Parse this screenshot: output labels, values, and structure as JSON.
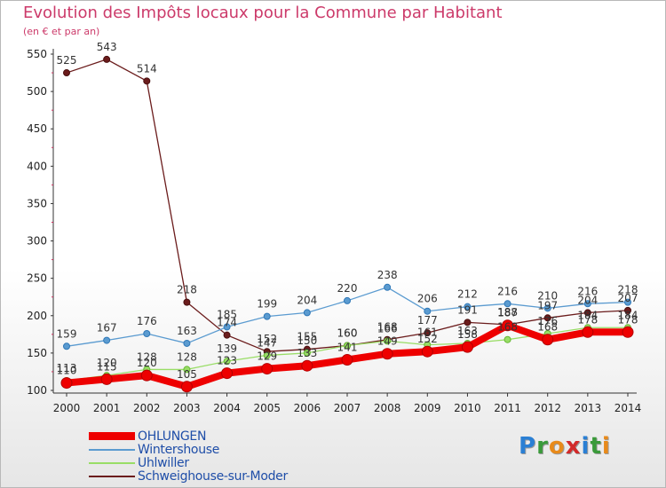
{
  "chart_data": {
    "type": "line",
    "title": "Evolution des Impôts locaux pour la Commune par Habitant",
    "subtitle": "(en € et par an)",
    "categories": [
      "2000",
      "2001",
      "2002",
      "2003",
      "2004",
      "2005",
      "2006",
      "2007",
      "2008",
      "2009",
      "2010",
      "2011",
      "2012",
      "2013",
      "2014"
    ],
    "ylim": [
      100,
      550
    ],
    "yticks": [
      100,
      150,
      200,
      250,
      300,
      350,
      400,
      450,
      500,
      550
    ],
    "grid": false,
    "legend_position": "bottom-left",
    "series": [
      {
        "name": "OHLUNGEN",
        "color": "#ee0000",
        "values": [
          110,
          115,
          120,
          105,
          123,
          129,
          133,
          141,
          149,
          152,
          158,
          187,
          168,
          178,
          178
        ]
      },
      {
        "name": "Wintershouse",
        "color": "#5b9bd0",
        "values": [
          159,
          167,
          176,
          163,
          185,
          199,
          204,
          220,
          238,
          206,
          212,
          216,
          210,
          216,
          218
        ]
      },
      {
        "name": "Uhlwiller",
        "color": "#99dd66",
        "values": [
          113,
          120,
          128,
          128,
          139,
          147,
          150,
          160,
          166,
          161,
          163,
          168,
          176,
          184,
          184
        ]
      },
      {
        "name": "Schweighouse-sur-Moder",
        "color": "#6b1c1c",
        "values": [
          525,
          543,
          514,
          218,
          174,
          152,
          155,
          160,
          168,
          177,
          191,
          188,
          197,
          204,
          207
        ]
      }
    ]
  },
  "logo": {
    "text": "Proxiti"
  }
}
